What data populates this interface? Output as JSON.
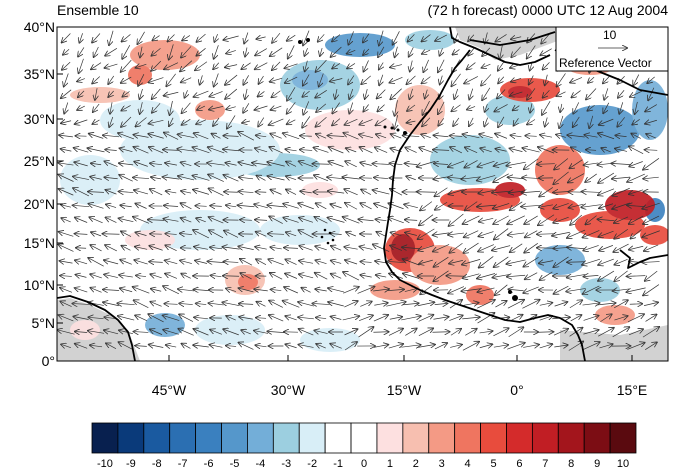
{
  "titles": {
    "left": "Ensemble 10",
    "right": "(72 h forecast) 0000 UTC 12 Aug 2004"
  },
  "reference_vector": {
    "magnitude": "10",
    "label": "Reference Vector"
  },
  "latitude_labels": [
    "40°N",
    "35°N",
    "30°N",
    "25°N",
    "20°N",
    "15°N",
    "10°N",
    "5°N",
    "0°"
  ],
  "longitude_labels": [
    "45°W",
    "30°W",
    "15°W",
    "0°",
    "15°E"
  ],
  "colorbar": {
    "labels": [
      "-10",
      "-9",
      "-8",
      "-7",
      "-6",
      "-5",
      "-4",
      "-3",
      "-2",
      "-1",
      "0",
      "1",
      "2",
      "3",
      "4",
      "5",
      "6",
      "7",
      "8",
      "9",
      "10"
    ],
    "colors": [
      "#08204f",
      "#0a3a7a",
      "#1a5aa0",
      "#2b6fb2",
      "#3a80bf",
      "#5597cb",
      "#73aed8",
      "#9ccfe0",
      "#d8eef7",
      "#ffffff",
      "#ffffff",
      "#fde0e0",
      "#f7bfb0",
      "#f49a85",
      "#ef7560",
      "#e84c3d",
      "#d42b2b",
      "#c11e24",
      "#a3151c",
      "#7c0d14",
      "#5a0a0f"
    ]
  },
  "map_style": {
    "land_fill": "#d2d2d2",
    "coast_color": "#000000",
    "vector_color": "#333333"
  }
}
